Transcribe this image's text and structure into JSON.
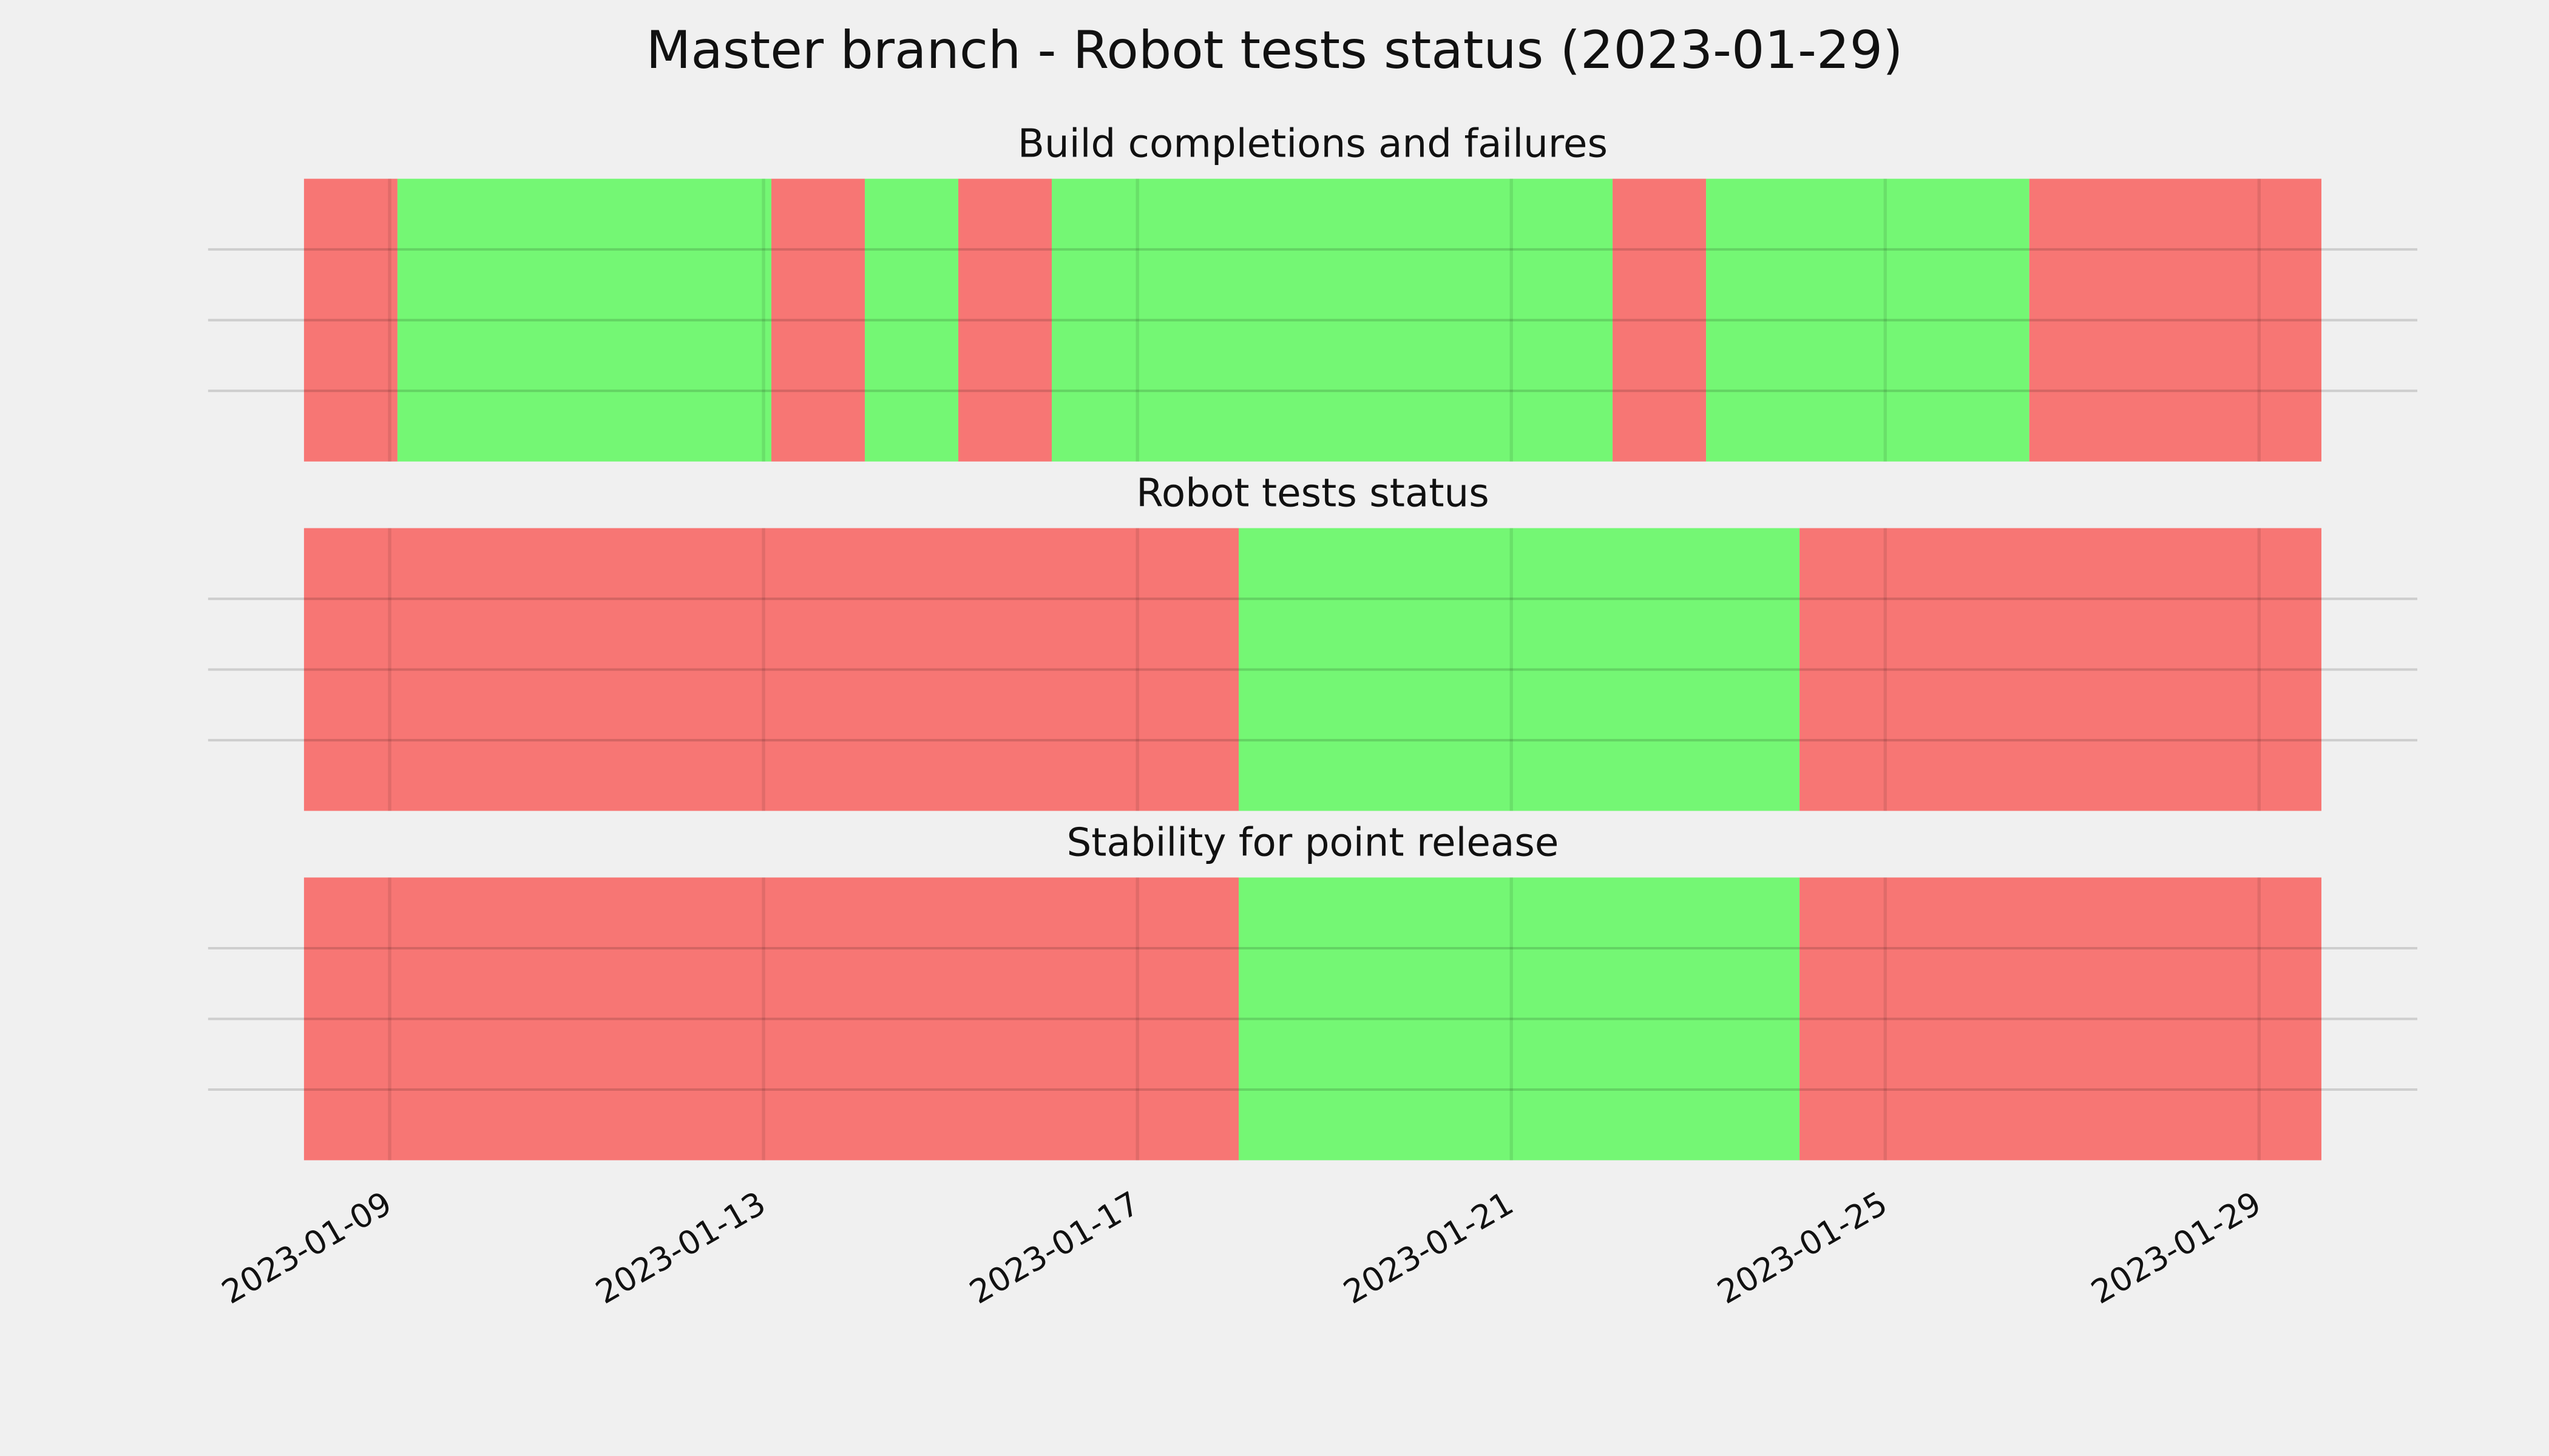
{
  "title": "Master branch - Robot tests status (2023-01-29)",
  "chart_data": [
    {
      "type": "span",
      "title": "Build completions and failures",
      "xlim": [
        "2023-01-08T02:00",
        "2023-01-29T16:00"
      ],
      "xticks": [
        "2023-01-09",
        "2023-01-13",
        "2023-01-17",
        "2023-01-21",
        "2023-01-25",
        "2023-01-29"
      ],
      "tick_labels": false,
      "ylim": [
        0,
        1
      ],
      "yticks": [
        0.25,
        0.5,
        0.75
      ],
      "grid": true,
      "spans": [
        {
          "start": "2023-01-08T02:00",
          "end": "2023-01-09T02:00",
          "color": "#f77674"
        },
        {
          "start": "2023-01-09T02:00",
          "end": "2023-01-13T02:00",
          "color": "#74f774"
        },
        {
          "start": "2023-01-13T02:00",
          "end": "2023-01-14T02:00",
          "color": "#f77674"
        },
        {
          "start": "2023-01-14T02:00",
          "end": "2023-01-15T02:00",
          "color": "#74f774"
        },
        {
          "start": "2023-01-15T02:00",
          "end": "2023-01-16T02:00",
          "color": "#f77674"
        },
        {
          "start": "2023-01-16T02:00",
          "end": "2023-01-22T02:00",
          "color": "#74f774"
        },
        {
          "start": "2023-01-22T02:00",
          "end": "2023-01-23T02:00",
          "color": "#f77674"
        },
        {
          "start": "2023-01-23T02:00",
          "end": "2023-01-26T13:00",
          "color": "#74f774"
        },
        {
          "start": "2023-01-26T13:00",
          "end": "2023-01-29T16:00",
          "color": "#f77674"
        }
      ]
    },
    {
      "type": "span",
      "title": "Robot tests status",
      "xlim": [
        "2023-01-08T02:00",
        "2023-01-29T16:00"
      ],
      "xticks": [
        "2023-01-09",
        "2023-01-13",
        "2023-01-17",
        "2023-01-21",
        "2023-01-25",
        "2023-01-29"
      ],
      "tick_labels": false,
      "ylim": [
        0,
        1
      ],
      "yticks": [
        0.25,
        0.5,
        0.75
      ],
      "grid": true,
      "spans": [
        {
          "start": "2023-01-08T02:00",
          "end": "2023-01-18T02:00",
          "color": "#f77674"
        },
        {
          "start": "2023-01-18T02:00",
          "end": "2023-01-24T02:00",
          "color": "#74f774"
        },
        {
          "start": "2023-01-24T02:00",
          "end": "2023-01-29T16:00",
          "color": "#f77674"
        }
      ]
    },
    {
      "type": "span",
      "title": "Stability for point release",
      "xlim": [
        "2023-01-08T02:00",
        "2023-01-29T16:00"
      ],
      "xticks": [
        "2023-01-09",
        "2023-01-13",
        "2023-01-17",
        "2023-01-21",
        "2023-01-25",
        "2023-01-29"
      ],
      "tick_labels": true,
      "ylim": [
        0,
        1
      ],
      "yticks": [
        0.25,
        0.5,
        0.75
      ],
      "grid": true,
      "spans": [
        {
          "start": "2023-01-08T02:00",
          "end": "2023-01-18T02:00",
          "color": "#f77674"
        },
        {
          "start": "2023-01-18T02:00",
          "end": "2023-01-24T02:00",
          "color": "#74f774"
        },
        {
          "start": "2023-01-24T02:00",
          "end": "2023-01-29T16:00",
          "color": "#f77674"
        }
      ]
    }
  ]
}
